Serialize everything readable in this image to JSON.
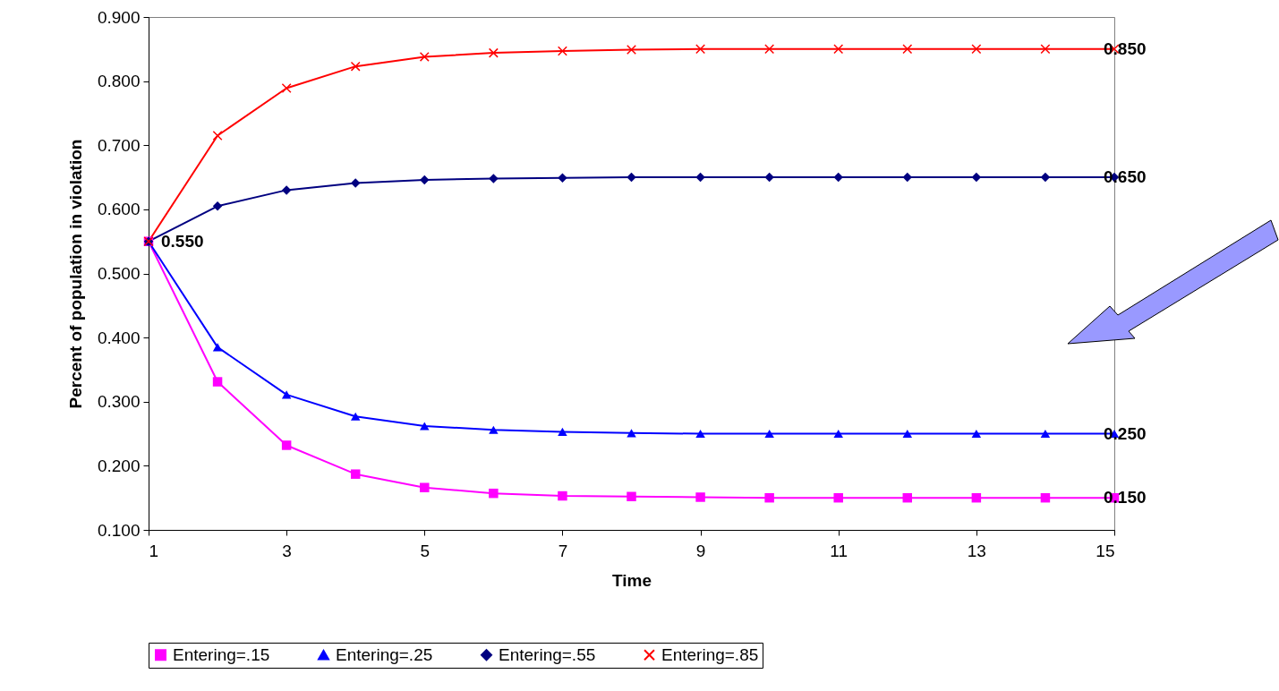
{
  "chart_data": {
    "type": "line",
    "xlabel": "Time",
    "ylabel": "Percent of population in violation",
    "x": [
      1,
      2,
      3,
      4,
      5,
      6,
      7,
      8,
      9,
      10,
      11,
      12,
      13,
      14,
      15
    ],
    "series": [
      {
        "name": "Entering=.15",
        "color": "#ff00ff",
        "marker": "square",
        "values": [
          0.55,
          0.331,
          0.232,
          0.187,
          0.166,
          0.157,
          0.153,
          0.152,
          0.151,
          0.15,
          0.15,
          0.15,
          0.15,
          0.15,
          0.15
        ],
        "value_labels": [
          null,
          null,
          null,
          null,
          null,
          null,
          null,
          null,
          null,
          null,
          null,
          null,
          null,
          null,
          "0.150"
        ]
      },
      {
        "name": "Entering=.25",
        "color": "#0000ff",
        "marker": "triangle",
        "values": [
          0.55,
          0.385,
          0.311,
          0.277,
          0.262,
          0.256,
          0.253,
          0.251,
          0.25,
          0.25,
          0.25,
          0.25,
          0.25,
          0.25,
          0.25
        ],
        "value_labels": [
          null,
          null,
          null,
          null,
          null,
          null,
          null,
          null,
          null,
          null,
          null,
          null,
          null,
          null,
          "0.250"
        ]
      },
      {
        "name": "Entering=.55",
        "color": "#000080",
        "marker": "diamond",
        "values": [
          0.55,
          0.605,
          0.63,
          0.641,
          0.646,
          0.648,
          0.649,
          0.65,
          0.65,
          0.65,
          0.65,
          0.65,
          0.65,
          0.65,
          0.65
        ],
        "value_labels": [
          "0.550",
          null,
          null,
          null,
          null,
          null,
          null,
          null,
          null,
          null,
          null,
          null,
          null,
          null,
          "0.650"
        ]
      },
      {
        "name": "Entering=.85",
        "color": "#ff0000",
        "marker": "cross",
        "values": [
          0.55,
          0.715,
          0.789,
          0.823,
          0.838,
          0.844,
          0.847,
          0.849,
          0.85,
          0.85,
          0.85,
          0.85,
          0.85,
          0.85,
          0.85
        ],
        "value_labels": [
          null,
          null,
          null,
          null,
          null,
          null,
          null,
          null,
          null,
          null,
          null,
          null,
          null,
          null,
          "0.850"
        ]
      }
    ],
    "xlim": [
      1,
      15
    ],
    "xticks": [
      1,
      3,
      5,
      7,
      9,
      11,
      13,
      15
    ],
    "ylim": [
      0.1,
      0.9
    ],
    "yticks": [
      {
        "value": 0.1,
        "label": "0.100"
      },
      {
        "value": 0.2,
        "label": "0.200"
      },
      {
        "value": 0.3,
        "label": "0.300"
      },
      {
        "value": 0.4,
        "label": "0.400"
      },
      {
        "value": 0.5,
        "label": "0.500"
      },
      {
        "value": 0.6,
        "label": "0.600"
      },
      {
        "value": 0.7,
        "label": "0.700"
      },
      {
        "value": 0.8,
        "label": "0.800"
      },
      {
        "value": 0.9,
        "label": "0.900"
      }
    ],
    "grid": false,
    "legend": "bottom"
  }
}
